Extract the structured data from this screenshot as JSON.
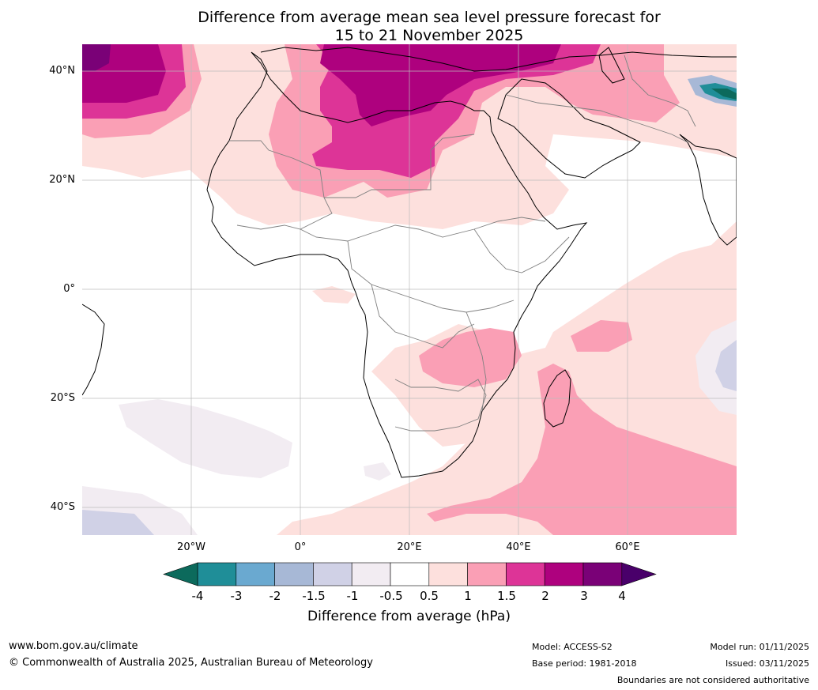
{
  "title": {
    "line1": "Difference from average mean sea level pressure forecast for",
    "line2": "15 to 21 November 2025"
  },
  "map": {
    "lat_labels": [
      "40°N",
      "20°N",
      "0°",
      "20°S",
      "40°S"
    ],
    "lon_labels": [
      "20°W",
      "0°",
      "20°E",
      "40°E",
      "60°E"
    ],
    "colors": {
      "lt_neg4": "#0c6a5c",
      "n4_n3": "#1f8e98",
      "n3_n2": "#6aa9d0",
      "n2_n15": "#a7b8d6",
      "n15_n1": "#d0d1e6",
      "n1_n05": "#f2ecf2",
      "neutral": "#ffffff",
      "p05_1": "#fde0dd",
      "p1_15": "#fa9fb5",
      "p15_2": "#dd3497",
      "p2_3": "#ae017e",
      "p3_4": "#7a0177",
      "gt_4": "#49006a"
    }
  },
  "colorbar": {
    "ticks": [
      "-4",
      "-3",
      "-2",
      "-1.5",
      "-1",
      "-0.5",
      "0.5",
      "1",
      "1.5",
      "2",
      "3",
      "4"
    ],
    "label": "Difference from average (hPa)"
  },
  "footer": {
    "website": "www.bom.gov.au/climate",
    "copyright": "© Commonwealth of Australia 2025, Australian Bureau of Meteorology",
    "model": "Model: ACCESS-S2",
    "base_period": "Base period: 1981-2018",
    "model_run": "Model run: 01/11/2025",
    "issued": "Issued: 03/11/2025",
    "disclaimer": "Boundaries are not considered authoritative"
  }
}
